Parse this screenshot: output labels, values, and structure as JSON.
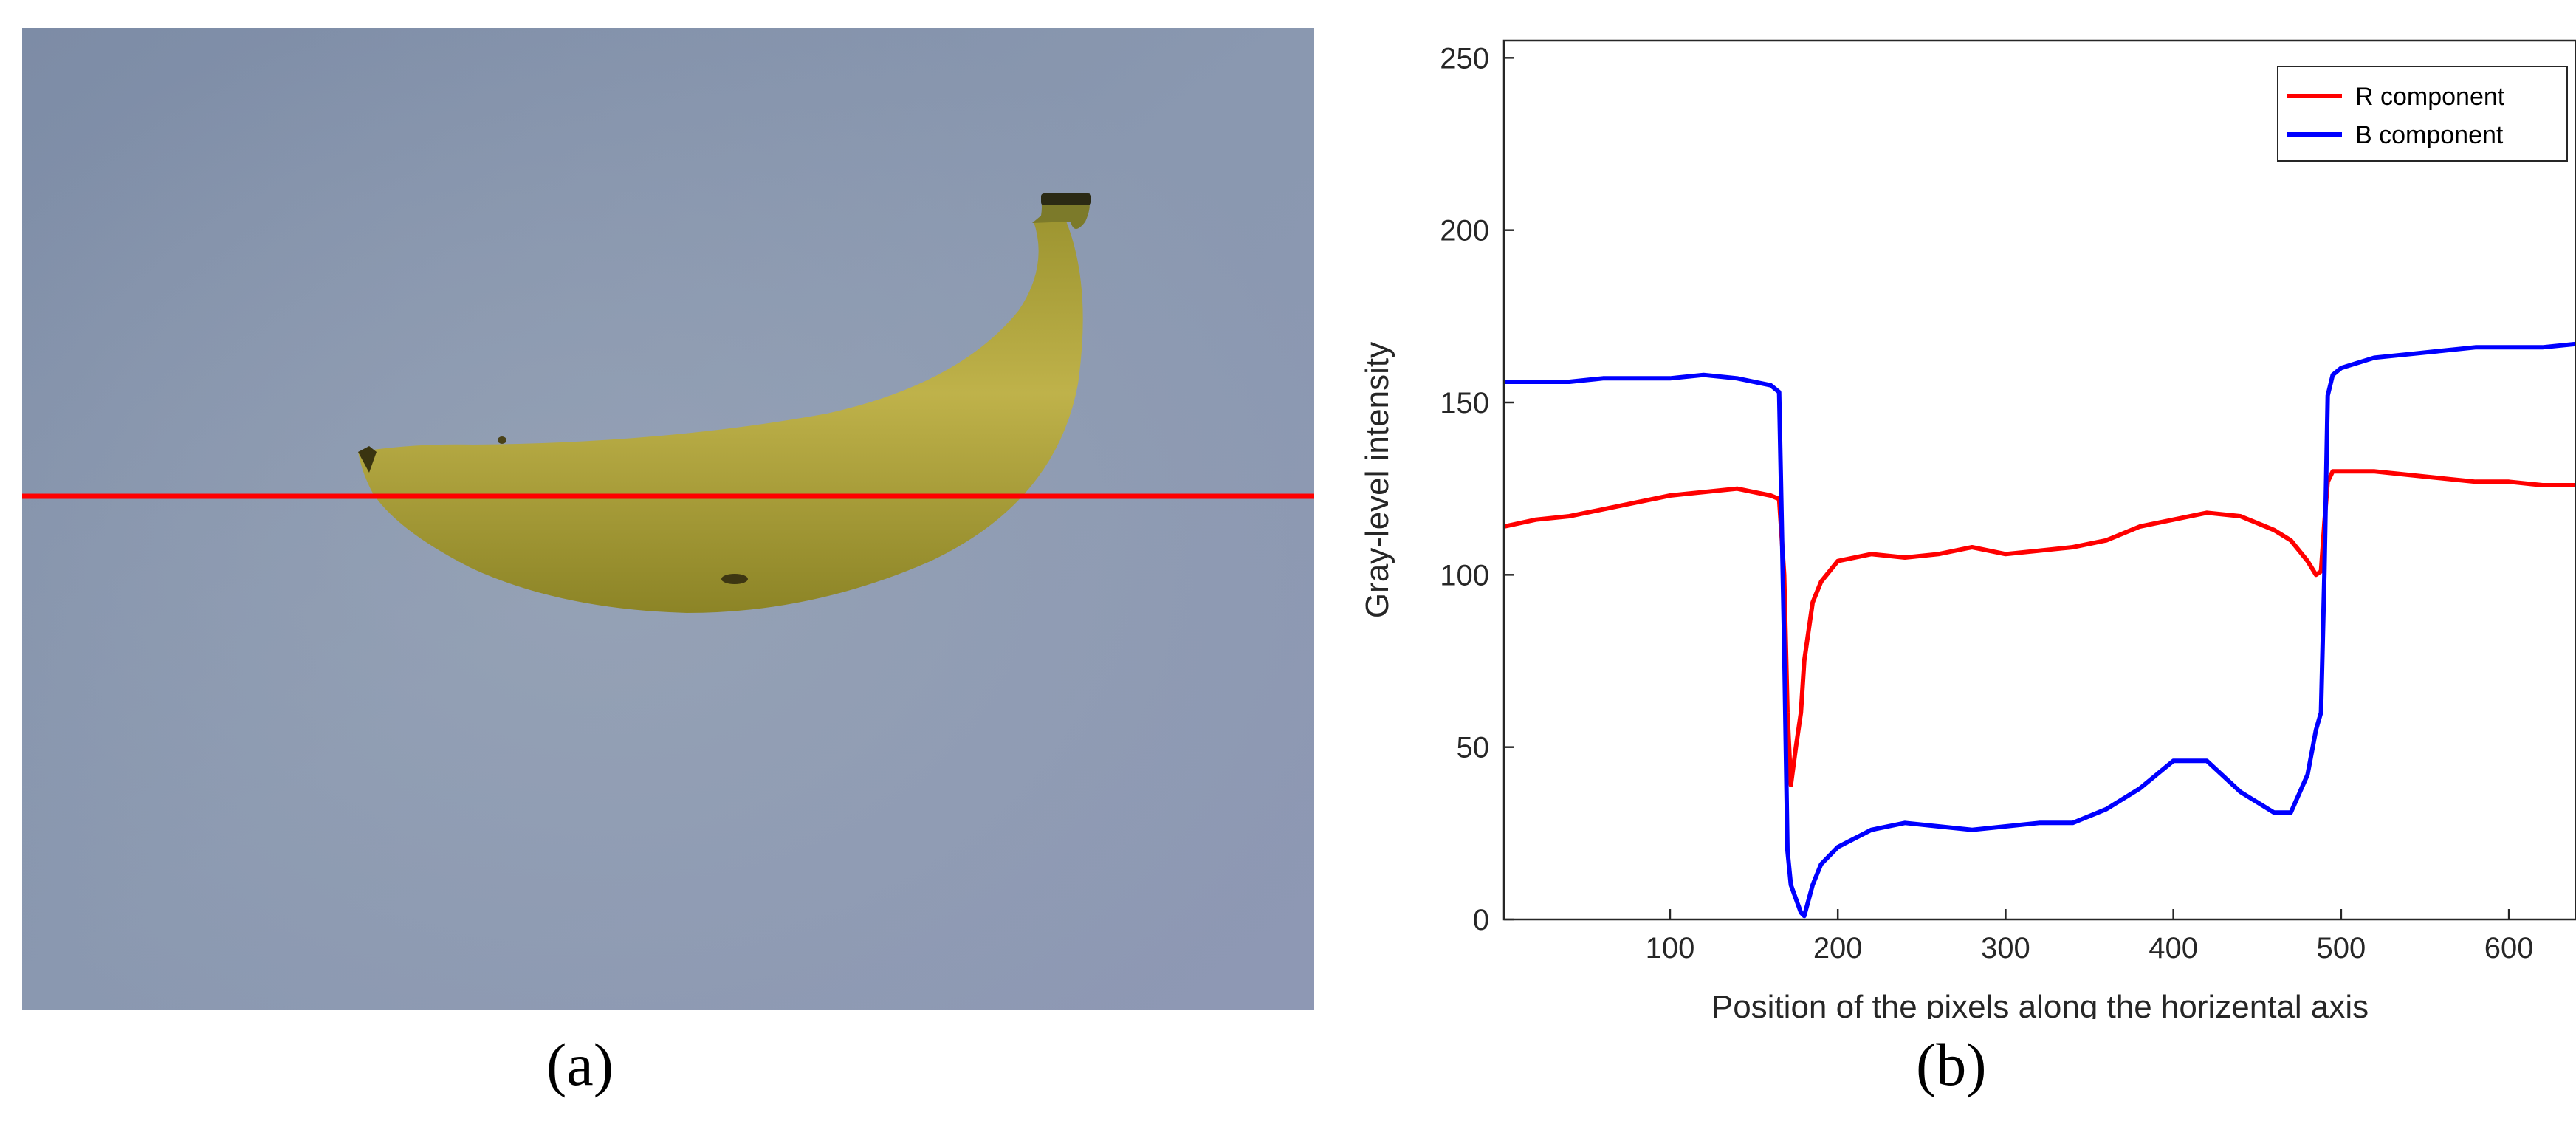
{
  "panels": {
    "a": {
      "caption": "(a)"
    },
    "b": {
      "caption": "(b)"
    }
  },
  "colors": {
    "r_component": "#ff0000",
    "b_component": "#0000ff",
    "scan_line": "#ff0000",
    "background_top": "#7f8fa8",
    "background_bottom": "#94a0b6",
    "banana": "#b8aa3a"
  },
  "chart_data": {
    "type": "line",
    "title": "",
    "xlabel": "Position of the pixels along the horizental axis",
    "ylabel": "Gray-level intensity",
    "xlim": [
      1,
      640
    ],
    "ylim": [
      0,
      255
    ],
    "xticks": [
      100,
      200,
      300,
      400,
      500,
      600
    ],
    "yticks": [
      0,
      50,
      100,
      150,
      200,
      250
    ],
    "grid": false,
    "legend_position": "top-right",
    "x": [
      1,
      20,
      40,
      60,
      80,
      100,
      120,
      140,
      160,
      165,
      168,
      170,
      172,
      175,
      178,
      180,
      185,
      190,
      200,
      220,
      240,
      260,
      280,
      300,
      320,
      340,
      360,
      380,
      400,
      420,
      440,
      460,
      470,
      480,
      485,
      488,
      490,
      492,
      495,
      500,
      520,
      540,
      560,
      580,
      600,
      620,
      640
    ],
    "series": [
      {
        "name": "R component",
        "values": [
          114,
          116,
          117,
          119,
          121,
          123,
          124,
          125,
          123,
          122,
          100,
          60,
          39,
          50,
          60,
          75,
          92,
          98,
          104,
          106,
          105,
          106,
          108,
          106,
          107,
          108,
          110,
          114,
          116,
          118,
          117,
          113,
          110,
          104,
          100,
          101,
          115,
          127,
          130,
          130,
          130,
          129,
          128,
          127,
          127,
          126,
          126
        ]
      },
      {
        "name": "B component",
        "values": [
          156,
          156,
          156,
          157,
          157,
          157,
          158,
          157,
          155,
          153,
          80,
          20,
          10,
          6,
          2,
          1,
          10,
          16,
          21,
          26,
          28,
          27,
          26,
          27,
          28,
          28,
          32,
          38,
          46,
          46,
          37,
          31,
          31,
          42,
          55,
          60,
          100,
          152,
          158,
          160,
          163,
          164,
          165,
          166,
          166,
          166,
          167
        ]
      }
    ]
  }
}
